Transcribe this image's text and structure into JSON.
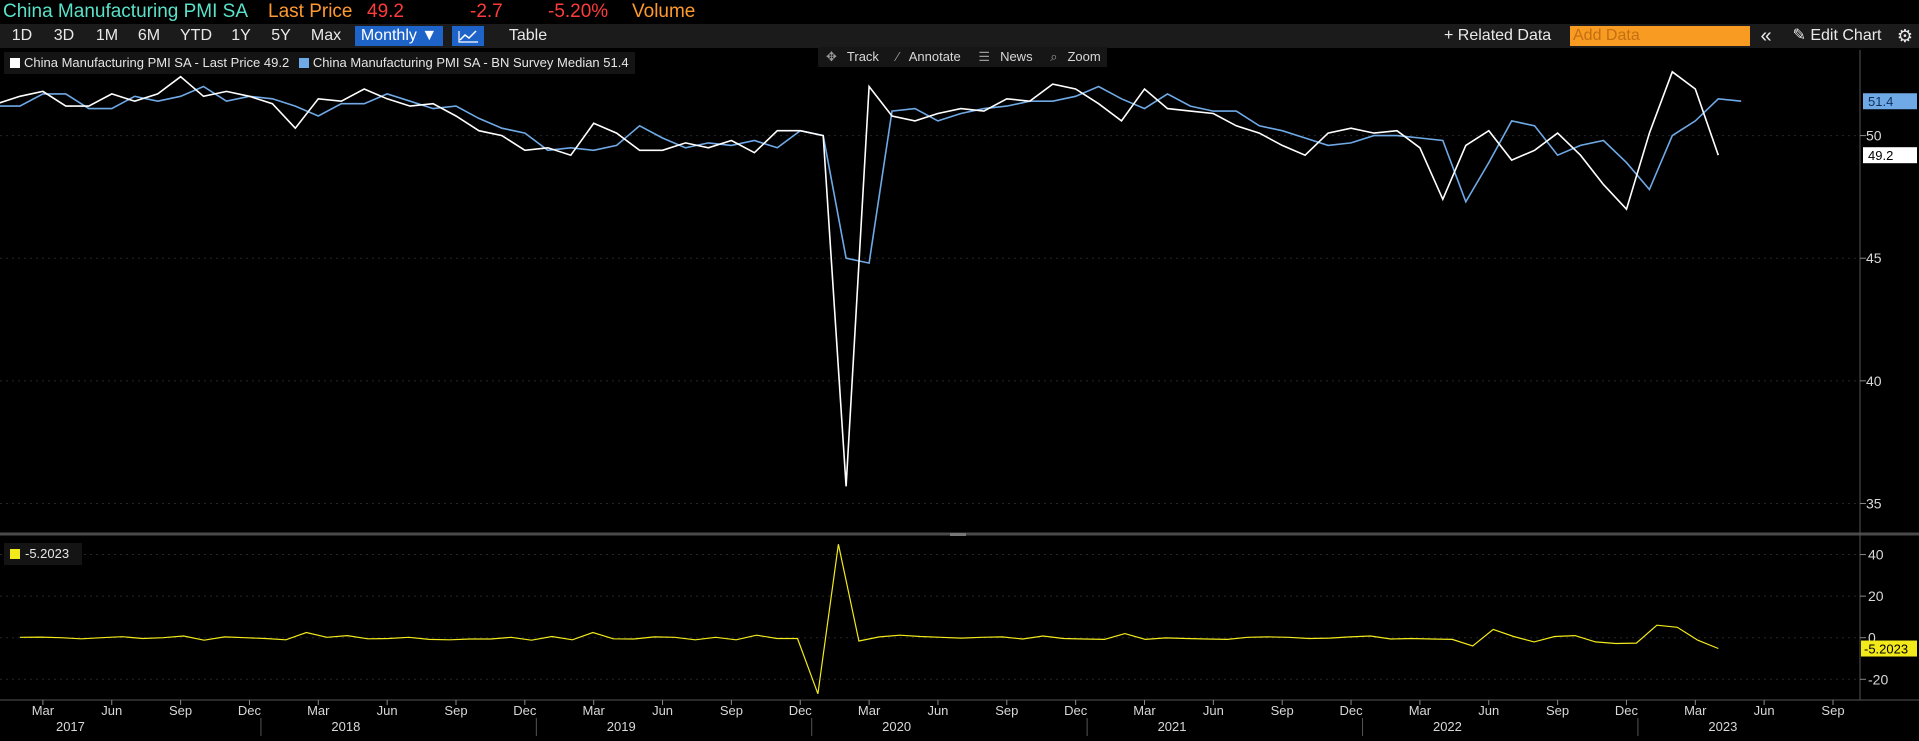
{
  "header": {
    "security": "China Manufacturing PMI SA",
    "last_price_label": "Last Price",
    "last_price": "49.2",
    "change": "-2.7",
    "change_pct": "-5.20%",
    "volume_label": "Volume"
  },
  "toolbar": {
    "ranges": [
      "1D",
      "3D",
      "1M",
      "6M",
      "YTD",
      "1Y",
      "5Y",
      "Max"
    ],
    "period": "Monthly ▼",
    "table_label": "Table",
    "related_label": "+ Related Data",
    "add_placeholder": "Add Data",
    "edit_label": "✎ Edit Chart",
    "collapse_glyph": "«",
    "gear_glyph": "⚙"
  },
  "chart_tools": {
    "track": "Track",
    "annotate": "Annotate",
    "news": "News",
    "zoom": "Zoom"
  },
  "colors": {
    "white_series": "#ffffff",
    "blue_series": "#6fa9e6",
    "yellow_series": "#f2ea1b",
    "grid": "#3a3a3a"
  },
  "chart_data": [
    {
      "type": "line",
      "x_start": "2017-01",
      "x_end": "2023-04",
      "ylim": [
        34,
        53
      ],
      "yticks": [
        35,
        40,
        45,
        50
      ],
      "series": [
        {
          "name": "China Manufacturing PMI SA - Last Price 49.2",
          "last_label": "49.2",
          "values": [
            51.3,
            51.6,
            51.8,
            51.2,
            51.2,
            51.7,
            51.4,
            51.7,
            52.4,
            51.6,
            51.8,
            51.6,
            51.3,
            50.3,
            51.5,
            51.4,
            51.9,
            51.5,
            51.2,
            51.3,
            50.8,
            50.2,
            50.0,
            49.4,
            49.5,
            49.2,
            50.5,
            50.1,
            49.4,
            49.4,
            49.7,
            49.5,
            49.8,
            49.3,
            50.2,
            50.2,
            50.0,
            35.7,
            52.0,
            50.8,
            50.6,
            50.9,
            51.1,
            51.0,
            51.5,
            51.4,
            52.1,
            51.9,
            51.3,
            50.6,
            51.9,
            51.1,
            51.0,
            50.9,
            50.4,
            50.1,
            49.6,
            49.2,
            50.1,
            50.3,
            50.1,
            50.2,
            49.5,
            47.4,
            49.6,
            50.2,
            49.0,
            49.4,
            50.1,
            49.2,
            48.0,
            47.0,
            50.1,
            52.6,
            51.9,
            49.2
          ]
        },
        {
          "name": "China Manufacturing PMI SA - BN Survey Median 51.4",
          "last_label": "51.4",
          "values": [
            51.2,
            51.2,
            51.7,
            51.7,
            51.1,
            51.1,
            51.6,
            51.4,
            51.6,
            52.0,
            51.4,
            51.6,
            51.5,
            51.2,
            50.8,
            51.3,
            51.3,
            51.7,
            51.4,
            51.1,
            51.2,
            50.7,
            50.3,
            50.1,
            49.4,
            49.5,
            49.4,
            49.6,
            50.4,
            49.9,
            49.5,
            49.7,
            49.6,
            49.8,
            49.5,
            50.2,
            50.0,
            45.0,
            44.8,
            51.0,
            51.1,
            50.6,
            50.9,
            51.1,
            51.2,
            51.4,
            51.4,
            51.6,
            52.0,
            51.5,
            51.1,
            51.7,
            51.2,
            51.0,
            51.0,
            50.4,
            50.2,
            49.9,
            49.6,
            49.7,
            50.0,
            50.0,
            49.9,
            49.8,
            47.3,
            48.9,
            50.6,
            50.4,
            49.2,
            49.6,
            49.8,
            48.9,
            47.8,
            50.0,
            50.6,
            51.5,
            51.4
          ]
        }
      ]
    },
    {
      "type": "line",
      "ylim": [
        -29,
        47
      ],
      "yticks": [
        -20,
        0,
        20,
        40
      ],
      "series": [
        {
          "name": "-5.2023",
          "last_label": "-5.2023",
          "values": [
            0.2,
            0.3,
            0.0,
            -0.5,
            0.0,
            0.5,
            -0.4,
            0.0,
            0.8,
            -1.2,
            0.4,
            0.0,
            -0.4,
            -1.0,
            2.5,
            0.2,
            1.0,
            -0.5,
            -0.4,
            0.2,
            -0.8,
            -1.0,
            -0.6,
            -0.6,
            0.2,
            -1.2,
            0.6,
            -1.0,
            2.5,
            -0.5,
            -0.6,
            0.4,
            0.2,
            -1.0,
            0.2,
            -1.0,
            1.2,
            -0.4,
            -0.4,
            -27.0,
            45.0,
            -1.6,
            0.4,
            1.2,
            0.6,
            0.2,
            -0.2,
            0.2,
            0.4,
            -0.6,
            0.8,
            -0.4,
            -0.6,
            -0.8,
            2.0,
            -0.8,
            -0.1,
            -0.4,
            -0.6,
            -0.8,
            0.2,
            0.4,
            0.2,
            -0.4,
            -0.2,
            0.4,
            0.8,
            -0.6,
            -0.4,
            -0.6,
            -0.8,
            -4.0,
            4.0,
            0.6,
            -2.0,
            0.6,
            1.0,
            -2.0,
            -2.8,
            -2.6,
            6.0,
            5.0,
            -1.2,
            -5.2
          ]
        }
      ]
    },
    {
      "type": "axis",
      "month_ticks": [
        "Mar",
        "Jun",
        "Sep",
        "Dec",
        "Mar",
        "Jun",
        "Sep",
        "Dec",
        "Mar",
        "Jun",
        "Sep",
        "Dec",
        "Mar",
        "Jun",
        "Sep",
        "Dec",
        "Mar",
        "Jun",
        "Sep",
        "Dec",
        "Mar",
        "Jun",
        "Sep",
        "Dec",
        "Mar",
        "Jun",
        "Sep"
      ],
      "year_labels": [
        "2017",
        "2018",
        "2019",
        "2020",
        "2021",
        "2022",
        "2023"
      ]
    }
  ]
}
